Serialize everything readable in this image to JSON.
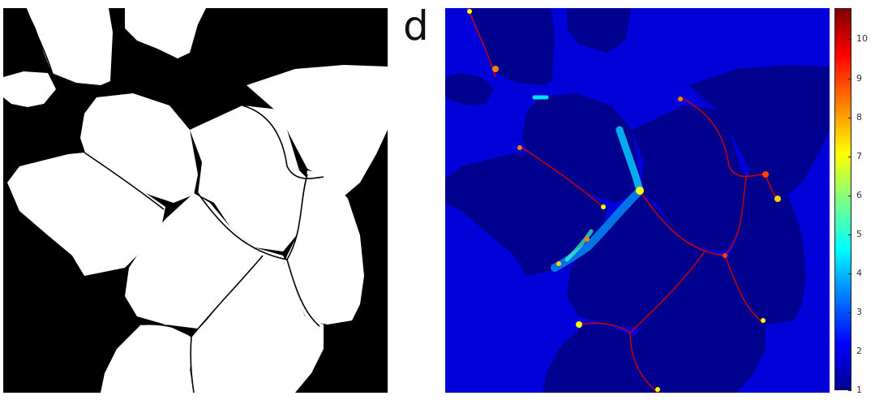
{
  "panel_label": "d",
  "colorbar": {
    "ticks": [
      "1",
      "2",
      "3",
      "4",
      "5",
      "6",
      "7",
      "8",
      "9",
      "10"
    ],
    "range": [
      1,
      10.8
    ]
  },
  "colors": {
    "background_dark": "#000000",
    "grain": "#ffffff",
    "map_low": "#00008f",
    "map_mid": "#0000d8",
    "boundary_high": "#c80000"
  }
}
